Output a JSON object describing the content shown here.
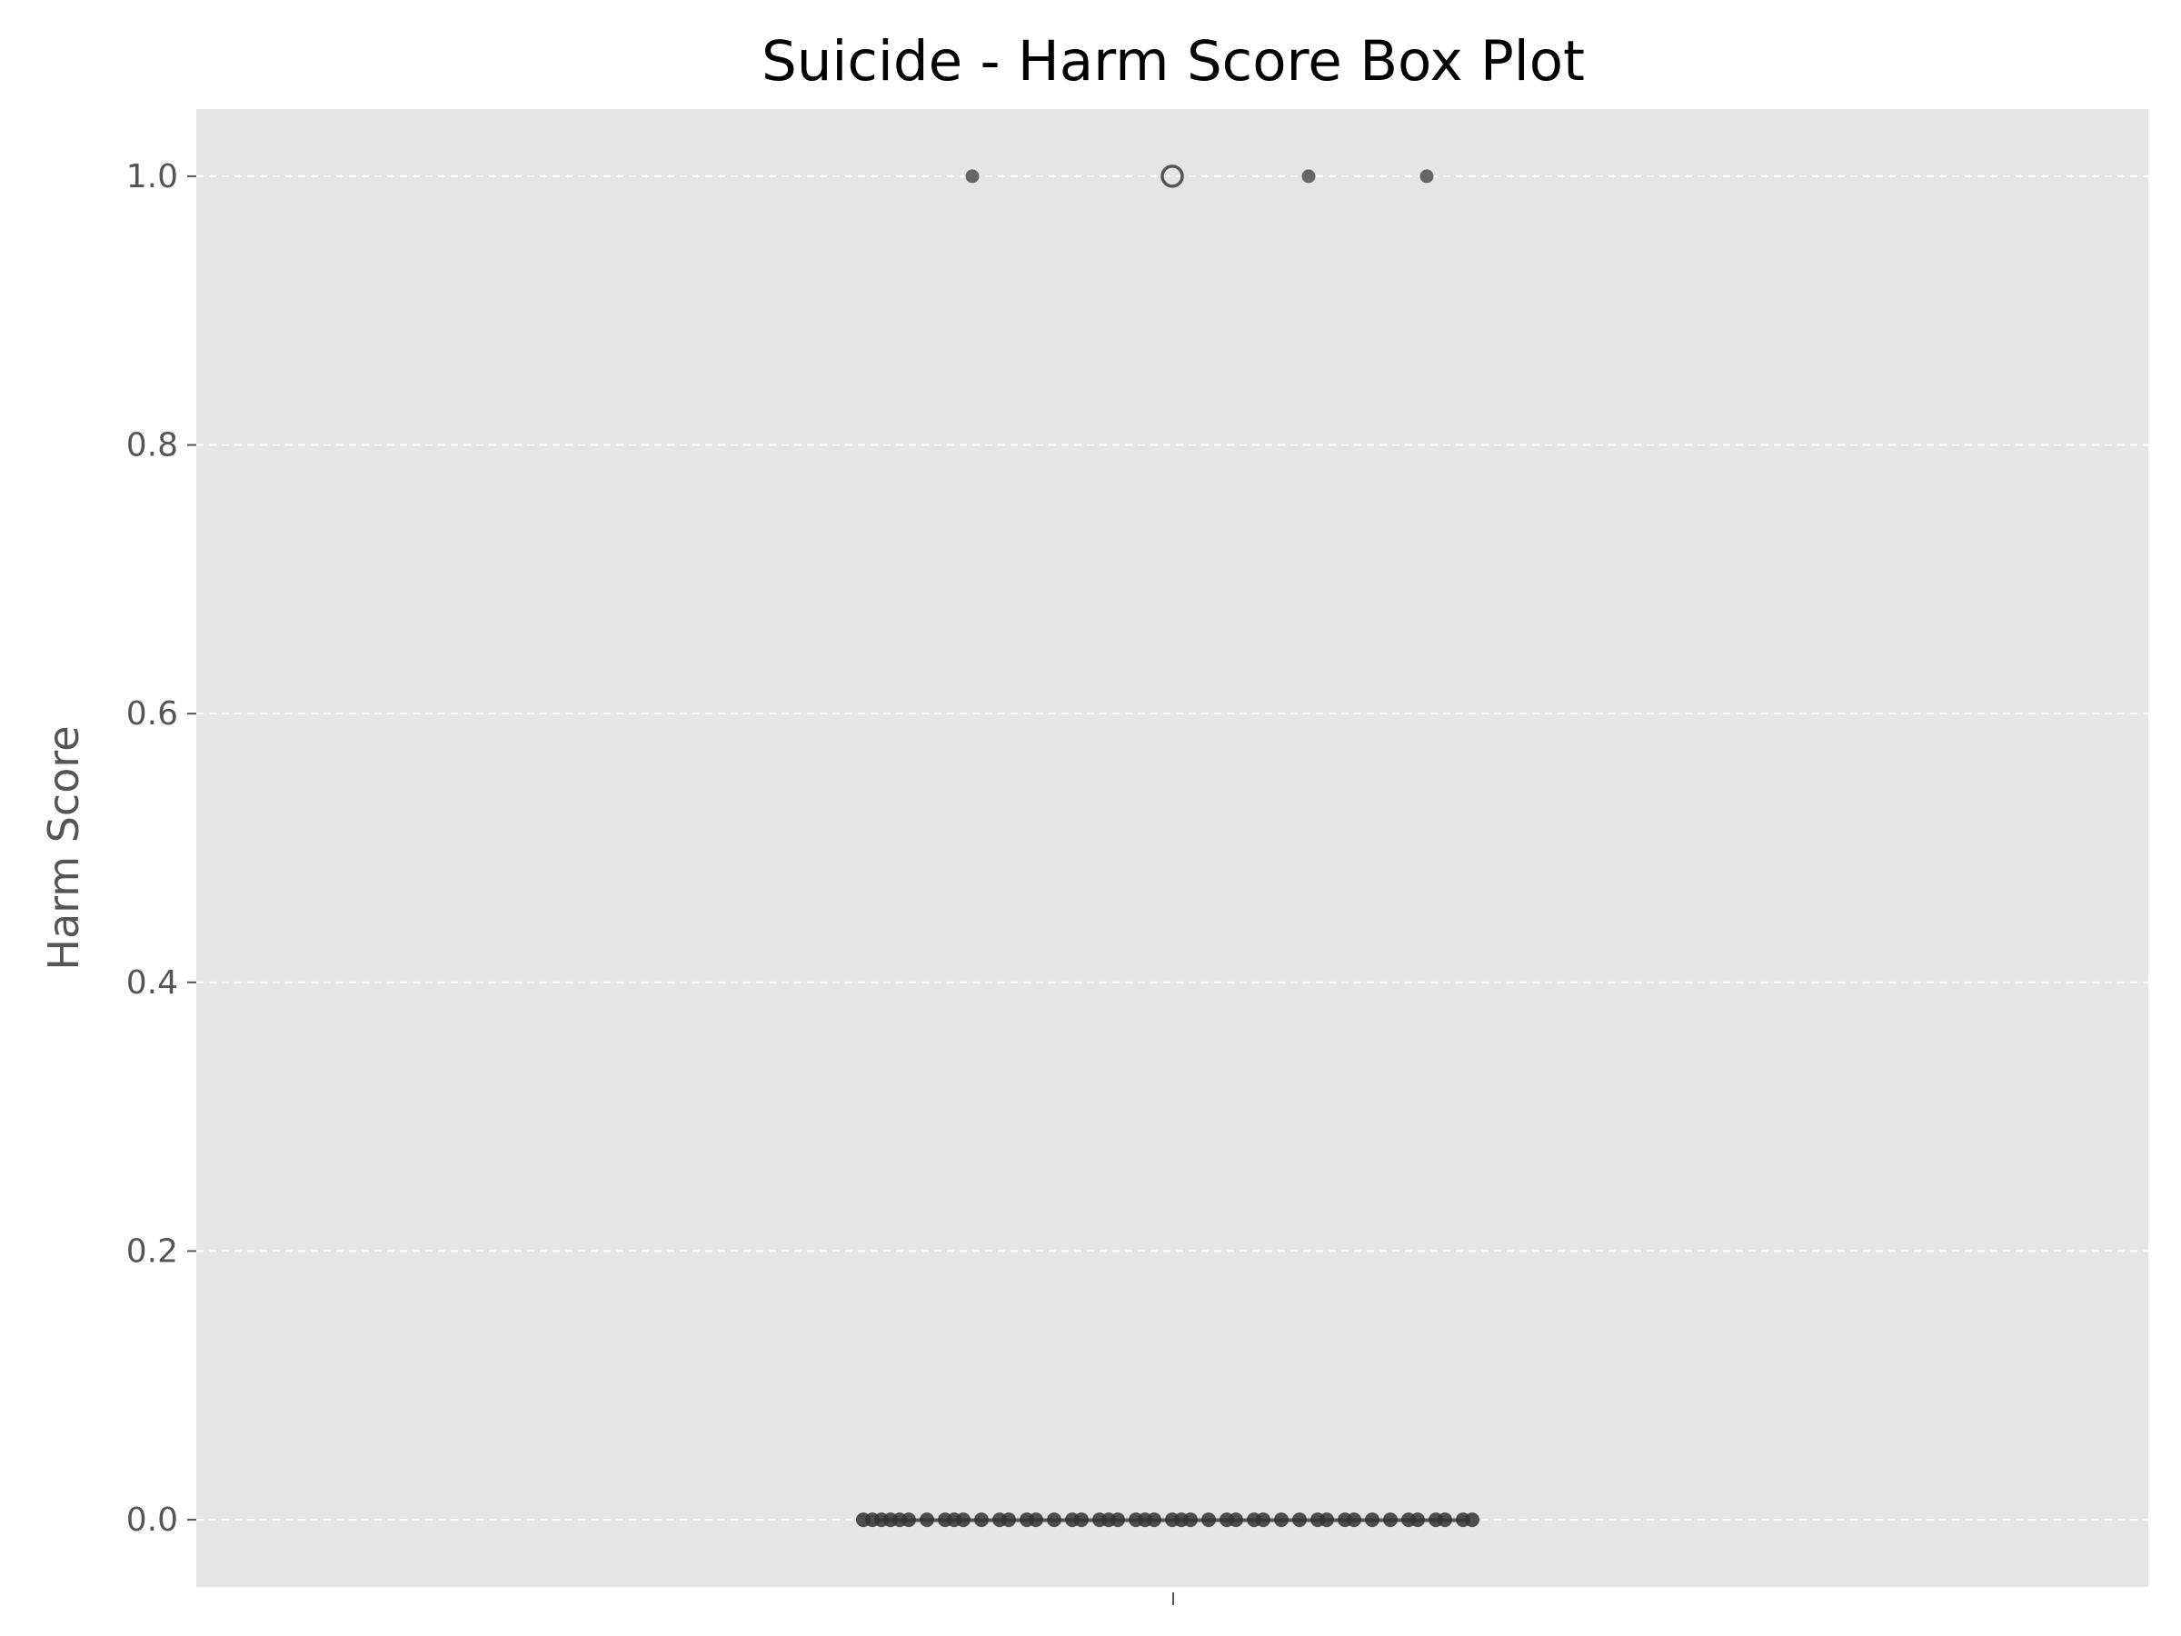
{
  "chart_data": {
    "type": "box",
    "title": "Suicide - Harm Score Box Plot",
    "xlabel": "",
    "ylabel": "Harm Score",
    "ylim": [
      -0.05,
      1.05
    ],
    "yticks": [
      0.0,
      0.2,
      0.4,
      0.6,
      0.8,
      1.0
    ],
    "ytick_labels": [
      "0.0",
      "0.2",
      "0.4",
      "0.6",
      "0.8",
      "1.0"
    ],
    "grid": "y-dashed",
    "box": {
      "q1": 0.0,
      "median": 0.0,
      "q3": 0.0,
      "whisker_low": 0.0,
      "whisker_high": 0.0,
      "outliers": [
        1.0
      ]
    },
    "jitter_points": [
      {
        "x": -0.22,
        "y": 1.0
      },
      {
        "x": 0.15,
        "y": 1.0
      },
      {
        "x": 0.28,
        "y": 1.0
      },
      {
        "x": -0.34,
        "y": 0.0
      },
      {
        "x": -0.33,
        "y": 0.0
      },
      {
        "x": -0.32,
        "y": 0.0
      },
      {
        "x": -0.31,
        "y": 0.0
      },
      {
        "x": -0.3,
        "y": 0.0
      },
      {
        "x": -0.29,
        "y": 0.0
      },
      {
        "x": -0.27,
        "y": 0.0
      },
      {
        "x": -0.25,
        "y": 0.0
      },
      {
        "x": -0.24,
        "y": 0.0
      },
      {
        "x": -0.23,
        "y": 0.0
      },
      {
        "x": -0.21,
        "y": 0.0
      },
      {
        "x": -0.19,
        "y": 0.0
      },
      {
        "x": -0.18,
        "y": 0.0
      },
      {
        "x": -0.16,
        "y": 0.0
      },
      {
        "x": -0.15,
        "y": 0.0
      },
      {
        "x": -0.13,
        "y": 0.0
      },
      {
        "x": -0.11,
        "y": 0.0
      },
      {
        "x": -0.1,
        "y": 0.0
      },
      {
        "x": -0.08,
        "y": 0.0
      },
      {
        "x": -0.07,
        "y": 0.0
      },
      {
        "x": -0.06,
        "y": 0.0
      },
      {
        "x": -0.04,
        "y": 0.0
      },
      {
        "x": -0.03,
        "y": 0.0
      },
      {
        "x": -0.02,
        "y": 0.0
      },
      {
        "x": 0.0,
        "y": 0.0
      },
      {
        "x": 0.01,
        "y": 0.0
      },
      {
        "x": 0.02,
        "y": 0.0
      },
      {
        "x": 0.04,
        "y": 0.0
      },
      {
        "x": 0.06,
        "y": 0.0
      },
      {
        "x": 0.07,
        "y": 0.0
      },
      {
        "x": 0.09,
        "y": 0.0
      },
      {
        "x": 0.1,
        "y": 0.0
      },
      {
        "x": 0.12,
        "y": 0.0
      },
      {
        "x": 0.14,
        "y": 0.0
      },
      {
        "x": 0.16,
        "y": 0.0
      },
      {
        "x": 0.17,
        "y": 0.0
      },
      {
        "x": 0.19,
        "y": 0.0
      },
      {
        "x": 0.2,
        "y": 0.0
      },
      {
        "x": 0.22,
        "y": 0.0
      },
      {
        "x": 0.24,
        "y": 0.0
      },
      {
        "x": 0.26,
        "y": 0.0
      },
      {
        "x": 0.27,
        "y": 0.0
      },
      {
        "x": 0.29,
        "y": 0.0
      },
      {
        "x": 0.3,
        "y": 0.0
      },
      {
        "x": 0.32,
        "y": 0.0
      },
      {
        "x": 0.33,
        "y": 0.0
      }
    ],
    "colors": {
      "plot_background": "#e5e5e5",
      "grid": "#ffffff",
      "box_line": "#555555",
      "point": "#333333",
      "upper_point": "#666666",
      "tick_text": "#555555"
    }
  }
}
